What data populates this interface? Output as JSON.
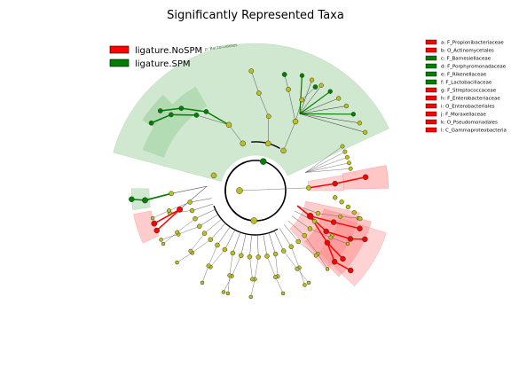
{
  "title": "Significantly Represented Taxa",
  "legend": [
    {
      "label": "ligature.NoSPM",
      "color": "#ff0000"
    },
    {
      "label": "ligature.SPM",
      "color": "#007f00"
    }
  ],
  "colors": {
    "red": "#ff0000",
    "green": "#007f00",
    "node": "#bfbf1a",
    "shade_red": "#ff8080",
    "shade_green": "#9fd19f"
  },
  "clade_label": "p: Bacteroidetes",
  "side_legend": [
    {
      "label": "a: F_Propionibacteriaceae",
      "color": "#ff0000"
    },
    {
      "label": "b: O_Actinomycetales",
      "color": "#ff0000"
    },
    {
      "label": "c: F_Barnesiellaceae",
      "color": "#007f00"
    },
    {
      "label": "d: F_Porphyromonadaceae",
      "color": "#007f00"
    },
    {
      "label": "e: F_Rikenellaceae",
      "color": "#007f00"
    },
    {
      "label": "f: F_Lactobacillaceae",
      "color": "#007f00"
    },
    {
      "label": "g: F_Streptococcaceae",
      "color": "#ff0000"
    },
    {
      "label": "h: F_Enterobacteriaceae",
      "color": "#ff0000"
    },
    {
      "label": "i: O_Enterobacteriales",
      "color": "#ff0000"
    },
    {
      "label": "j: F_Moraxellaceae",
      "color": "#ff0000"
    },
    {
      "label": "k: O_Pseudomonadales",
      "color": "#ff0000"
    },
    {
      "label": "l: C_Gammaproteobacteria",
      "color": "#ff0000"
    }
  ]
}
